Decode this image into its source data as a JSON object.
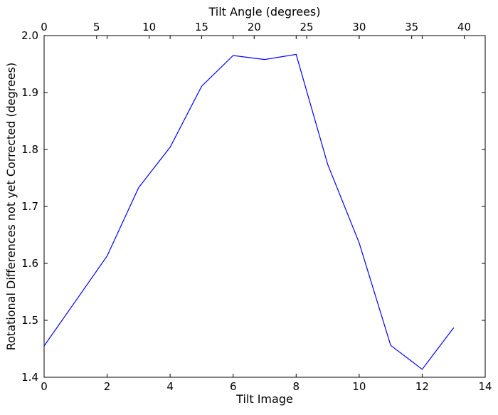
{
  "chart_data": {
    "type": "line",
    "title": "",
    "xlabel": "Tilt Image",
    "ylabel": "Rotational Differences not yet Corrected (degrees)",
    "x2label": "Tilt Angle (degrees)",
    "xlim": [
      0,
      14
    ],
    "ylim": [
      1.4,
      2.0
    ],
    "x2lim": [
      0,
      42
    ],
    "x_ticks": [
      "0",
      "2",
      "4",
      "6",
      "8",
      "10",
      "12",
      "14"
    ],
    "y_ticks": [
      "1.4",
      "1.5",
      "1.6",
      "1.7",
      "1.8",
      "1.9",
      "2.0"
    ],
    "x2_ticks": [
      "0",
      "5",
      "10",
      "15",
      "20",
      "25",
      "30",
      "35",
      "40"
    ],
    "grid": false,
    "legend": "none",
    "series": [
      {
        "color": "#0000ff",
        "x": [
          0,
          1,
          2,
          3,
          4,
          5,
          6,
          7,
          8,
          9,
          10,
          11,
          12,
          13
        ],
        "y": [
          1.455,
          1.534,
          1.613,
          1.733,
          1.804,
          1.911,
          1.965,
          1.958,
          1.967,
          1.774,
          1.636,
          1.456,
          1.414,
          1.487
        ]
      }
    ]
  }
}
